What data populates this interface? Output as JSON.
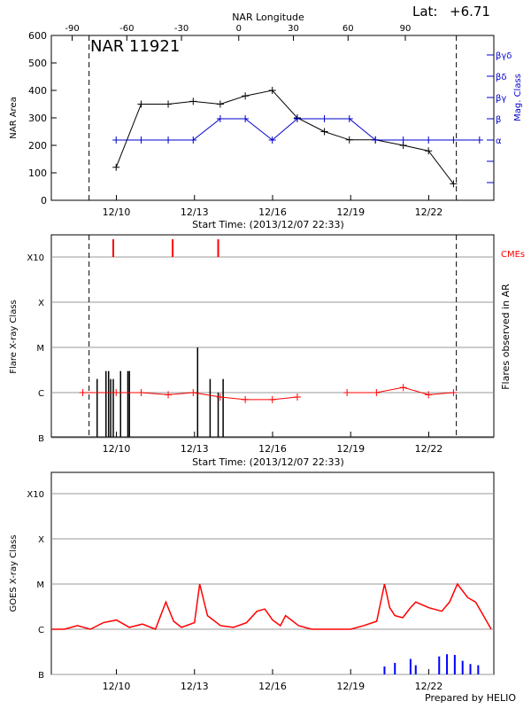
{
  "header": {
    "region_title": "NAR 11921",
    "lat_label": "Lat:",
    "lat_value": "+6.71",
    "footer": "Prepared by HELIO"
  },
  "colors": {
    "axis": "#000000",
    "nar_area": "#000000",
    "mag_class": "#0000cc",
    "flare_markers": "#ff0000",
    "cmes": "#ff0000",
    "goes_long": "#ff0000",
    "goes_short": "#0000ff",
    "gridline": "#999999"
  },
  "chart_data": [
    {
      "id": "nar",
      "type": "line",
      "top_axis_label": "NAR Longitude",
      "ylabel": "NAR Area",
      "y2label": "Mag. Class",
      "xlabel": "Start Time: (2013/12/07 22:33)",
      "xlim": [
        0,
        17
      ],
      "ylim": [
        0,
        600
      ],
      "x_ticks": [
        {
          "x": 2.5,
          "label": "12/10"
        },
        {
          "x": 5.5,
          "label": "12/13"
        },
        {
          "x": 8.5,
          "label": "12/16"
        },
        {
          "x": 11.5,
          "label": "12/19"
        },
        {
          "x": 14.5,
          "label": "12/22"
        }
      ],
      "top_ticks": [
        {
          "x": 0.8,
          "label": "-90"
        },
        {
          "x": 2.9,
          "label": "-60"
        },
        {
          "x": 5.0,
          "label": "-30"
        },
        {
          "x": 7.2,
          "label": "0"
        },
        {
          "x": 9.3,
          "label": "30"
        },
        {
          "x": 11.4,
          "label": "60"
        },
        {
          "x": 13.6,
          "label": "90"
        }
      ],
      "y_ticks": [
        "0",
        "100",
        "200",
        "300",
        "400",
        "500",
        "600"
      ],
      "y2_ticks": [
        "α",
        "β",
        "βγ",
        "βδ",
        "βγδ"
      ],
      "markers_x": [
        1.45,
        15.56
      ],
      "series": [
        {
          "key": "area",
          "x": [
            2.49,
            3.45,
            4.49,
            5.45,
            6.49,
            7.45,
            8.49,
            9.45,
            10.49,
            11.45,
            12.45,
            13.52,
            14.49,
            15.45
          ],
          "y": [
            120,
            350,
            350,
            360,
            350,
            380,
            400,
            300,
            250,
            220,
            220,
            200,
            180,
            60
          ]
        },
        {
          "key": "mag",
          "x": [
            2.49,
            3.45,
            4.49,
            5.45,
            6.49,
            7.45,
            8.49,
            9.45,
            10.49,
            11.45,
            12.45,
            13.52,
            14.49,
            15.45,
            16.45
          ],
          "y": [
            "α",
            "α",
            "α",
            "α",
            "β",
            "β",
            "α",
            "β",
            "β",
            "β",
            "α",
            "α",
            "α",
            "α",
            "α"
          ]
        }
      ]
    },
    {
      "id": "flares",
      "type": "line",
      "ylabel": "Flare X-ray Class",
      "y2label": "Flares observed in AR",
      "xlabel": "Start Time: (2013/12/07 22:33)",
      "cme_label": "CMEs",
      "xlim": [
        0,
        17
      ],
      "y_levels": [
        "B",
        "C",
        "M",
        "X",
        "X10"
      ],
      "x_ticks": [
        "12/10",
        "12/13",
        "12/16",
        "12/19",
        "12/22"
      ],
      "markers_x": [
        1.45,
        15.56
      ],
      "cmes_x": [
        2.38,
        4.66,
        6.41
      ],
      "flare_class_series": {
        "x": [
          1.21,
          2.49,
          3.45,
          4.49,
          5.45,
          6.49,
          7.45,
          8.49,
          9.45,
          11.36,
          12.49,
          13.52,
          14.49,
          15.45
        ],
        "y": [
          "C1",
          "C1",
          "C1",
          "B9",
          "C1",
          "B8",
          "B7",
          "B7",
          "B8",
          "C1",
          "C1",
          "C1.3",
          "B9",
          "C1"
        ]
      },
      "flare_events": [
        {
          "x": 1.76,
          "class": "C2"
        },
        {
          "x": 2.1,
          "class": "C3"
        },
        {
          "x": 2.2,
          "class": "C3"
        },
        {
          "x": 2.28,
          "class": "C2"
        },
        {
          "x": 2.38,
          "class": "C2"
        },
        {
          "x": 2.66,
          "class": "C3"
        },
        {
          "x": 2.94,
          "class": "C3"
        },
        {
          "x": 3.0,
          "class": "C3"
        },
        {
          "x": 5.62,
          "class": "M1"
        },
        {
          "x": 6.1,
          "class": "C2"
        },
        {
          "x": 6.41,
          "class": "C1"
        },
        {
          "x": 6.6,
          "class": "C2"
        }
      ]
    },
    {
      "id": "goes",
      "type": "line",
      "ylabel": "GOES X-ray Class",
      "xlim": [
        0,
        17
      ],
      "y_levels": [
        "B",
        "C",
        "M",
        "X",
        "X10"
      ],
      "x_ticks": [
        "12/10",
        "12/13",
        "12/16",
        "12/19",
        "12/22"
      ],
      "series": [
        {
          "name": "",
          "key": "long",
          "x": [
            0.0,
            0.5,
            1.0,
            1.5,
            2.0,
            2.5,
            3.0,
            3.5,
            4.0,
            4.4,
            4.7,
            5.0,
            5.5,
            5.7,
            6.0,
            6.5,
            7.0,
            7.5,
            7.9,
            8.2,
            8.5,
            8.8,
            9.0,
            9.5,
            10.0,
            10.5,
            11.0,
            11.5,
            12.0,
            12.5,
            12.8,
            13.0,
            13.2,
            13.5,
            13.8,
            14.0,
            14.5,
            15.0,
            15.3,
            15.6,
            16.0,
            16.3,
            16.6,
            16.9
          ],
          "y": [
            "C1",
            "C1",
            "C1.2",
            "C1",
            "C1.4",
            "C1.6",
            "C1.1",
            "C1.3",
            "C1",
            "C4",
            "C1.5",
            "C1.1",
            "C1.4",
            "M1",
            "C2",
            "C1.2",
            "C1.1",
            "C1.4",
            "C2.5",
            "C2.8",
            "C1.6",
            "C1.2",
            "C2",
            "C1.2",
            "C1",
            "C1",
            "C1",
            "C1",
            "C1.2",
            "C1.5",
            "M1",
            "C3",
            "C2",
            "C1.8",
            "C3",
            "C4",
            "C3",
            "C2.5",
            "C4",
            "M1",
            "C5",
            "C4",
            "C2",
            "C1"
          ]
        },
        {
          "name": "",
          "key": "short",
          "x": [
            1.2,
            2.3,
            3.1,
            4.3,
            5.6,
            6.0,
            8.3,
            10.8,
            11.9,
            12.2,
            12.5,
            12.8,
            13.0,
            13.2,
            13.5,
            13.8,
            14.0,
            14.3,
            14.6,
            14.9,
            15.2,
            15.5,
            15.8,
            16.1,
            16.4
          ],
          "y": [
            "B0.3",
            "B0.4",
            "B0.2",
            "B0.3",
            "B0.6",
            "B0.8",
            "B0.5",
            "B0.2",
            "B0.4",
            "B0.9",
            "B0.8",
            "B1.5",
            "B0.9",
            "B1.8",
            "B0.6",
            "B2.2",
            "B1.6",
            "B0.9",
            "B1.0",
            "B2.5",
            "B2.8",
            "B2.7",
            "B2.0",
            "B1.7",
            "B1.6"
          ]
        }
      ]
    }
  ]
}
